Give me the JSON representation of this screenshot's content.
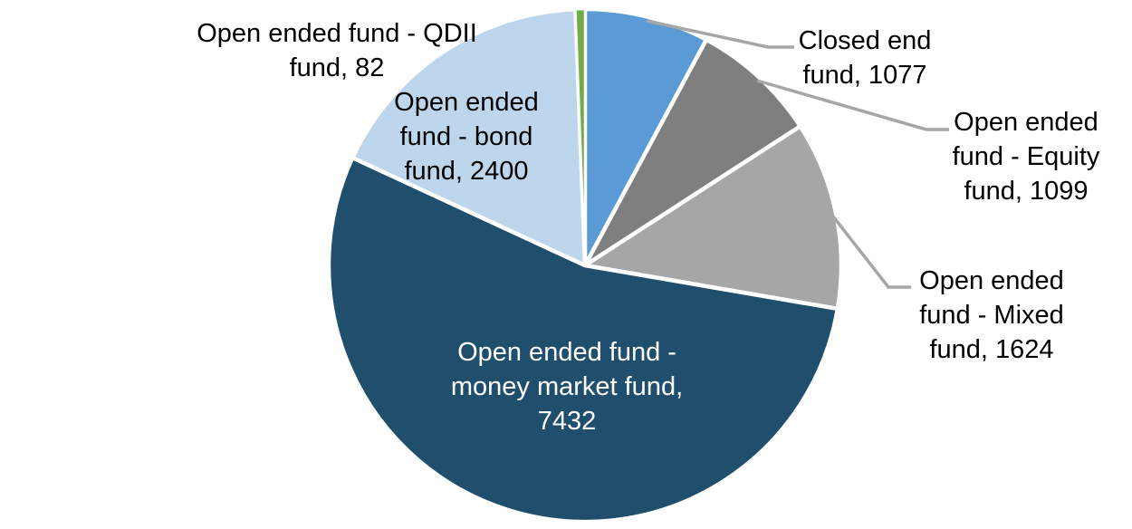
{
  "chart_data": {
    "type": "pie",
    "title": "",
    "legend": "none",
    "background_color": "#FFFFFF",
    "leader_line_color": "#A6A6A6",
    "direction": "clockwise",
    "start_angle_deg": 0,
    "total": 13714,
    "label_format": "category, value",
    "slices": [
      {
        "id": "closed-end-fund",
        "label": "Closed end fund",
        "value": 1077,
        "color": "#5B9BD5",
        "label_position": "outside-leader",
        "label_text_color": "#000000",
        "label_lines": [
          "Closed end",
          "fund, 1077"
        ]
      },
      {
        "id": "equity-fund",
        "label": "Open ended fund - Equity fund",
        "value": 1099,
        "color": "#7F7F7F",
        "label_position": "outside-leader",
        "label_text_color": "#000000",
        "label_lines": [
          "Open ended",
          "fund - Equity",
          "fund, 1099"
        ]
      },
      {
        "id": "mixed-fund",
        "label": "Open ended fund - Mixed fund",
        "value": 1624,
        "color": "#A6A6A6",
        "label_position": "outside-leader",
        "label_text_color": "#000000",
        "label_lines": [
          "Open ended",
          "fund - Mixed",
          "fund, 1624"
        ]
      },
      {
        "id": "money-market-fund",
        "label": "Open ended fund - money market fund",
        "value": 7432,
        "color": "#204F6E",
        "label_position": "inside",
        "label_text_color": "#FFFFFF",
        "label_lines": [
          "Open ended fund -",
          "money market fund,",
          "7432"
        ]
      },
      {
        "id": "bond-fund",
        "label": "Open ended fund - bond fund",
        "value": 2400,
        "color": "#BDD6EC",
        "label_position": "inside",
        "label_text_color": "#000000",
        "label_lines": [
          "Open ended",
          "fund - bond",
          "fund, 2400"
        ]
      },
      {
        "id": "qdii-fund",
        "label": "Open ended fund - QDII fund",
        "value": 82,
        "color": "#70AD47",
        "label_position": "outside",
        "label_text_color": "#000000",
        "label_lines": [
          "Open ended fund - QDII",
          "fund, 82"
        ]
      }
    ]
  }
}
